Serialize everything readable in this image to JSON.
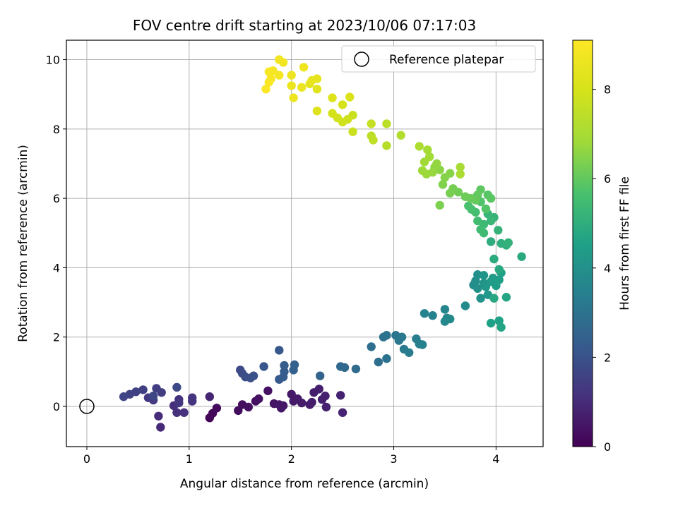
{
  "chart_data": {
    "type": "scatter",
    "title": "FOV centre drift starting at 2023/10/06 07:17:03",
    "xlabel": "Angular distance from reference (arcmin)",
    "ylabel": "Rotation from reference (arcmin)",
    "xlim": [
      -0.2,
      4.46
    ],
    "ylim": [
      -1.16,
      10.56
    ],
    "xticks": [
      0,
      1,
      2,
      3,
      4
    ],
    "yticks": [
      0,
      2,
      4,
      6,
      8,
      10
    ],
    "grid": true,
    "legend": {
      "placement": "top-right",
      "entries": [
        "Reference platepar"
      ]
    },
    "reference_point": {
      "name": "Reference platepar",
      "x": 0,
      "y": 0
    },
    "colorbar": {
      "label": "Hours from first FF file",
      "range": [
        0,
        9.1
      ],
      "ticks": [
        0,
        2,
        4,
        6,
        8
      ],
      "colormap": "viridis"
    },
    "points": [
      [
        1.2,
        -0.33,
        0.1
      ],
      [
        1.23,
        -0.2,
        0.15
      ],
      [
        1.27,
        -0.05,
        0.2
      ],
      [
        1.48,
        -0.12,
        0.25
      ],
      [
        1.52,
        0.05,
        0.3
      ],
      [
        1.58,
        -0.02,
        0.32
      ],
      [
        1.65,
        0.15,
        0.35
      ],
      [
        1.68,
        0.22,
        0.38
      ],
      [
        1.77,
        0.45,
        0.4
      ],
      [
        1.83,
        0.08,
        0.45
      ],
      [
        1.88,
        0.05,
        0.48
      ],
      [
        1.9,
        -0.05,
        0.5
      ],
      [
        1.92,
        0.02,
        0.52
      ],
      [
        2.0,
        0.35,
        0.55
      ],
      [
        2.02,
        0.15,
        0.58
      ],
      [
        2.06,
        0.22,
        0.6
      ],
      [
        2.1,
        0.1,
        0.6
      ],
      [
        2.18,
        0.05,
        0.65
      ],
      [
        2.2,
        0.12,
        0.66
      ],
      [
        2.22,
        0.4,
        0.68
      ],
      [
        2.27,
        0.5,
        0.7
      ],
      [
        2.3,
        0.2,
        0.72
      ],
      [
        2.33,
        0.3,
        0.74
      ],
      [
        2.34,
        -0.02,
        0.76
      ],
      [
        2.48,
        0.32,
        0.78
      ],
      [
        2.5,
        -0.18,
        0.8
      ],
      [
        1.2,
        0.28,
        0.85
      ],
      [
        0.72,
        -0.6,
        0.95
      ],
      [
        0.7,
        -0.28,
        1.0
      ],
      [
        0.85,
        0.02,
        1.05
      ],
      [
        0.9,
        0.2,
        1.1
      ],
      [
        0.88,
        -0.18,
        1.12
      ],
      [
        0.95,
        -0.18,
        1.15
      ],
      [
        1.03,
        0.15,
        1.2
      ],
      [
        1.03,
        0.25,
        1.22
      ],
      [
        0.9,
        0.1,
        1.25
      ],
      [
        0.6,
        0.25,
        1.3
      ],
      [
        0.65,
        0.18,
        1.35
      ],
      [
        0.73,
        0.4,
        1.4
      ],
      [
        0.68,
        0.52,
        1.45
      ],
      [
        0.55,
        0.48,
        1.5
      ],
      [
        0.48,
        0.42,
        1.55
      ],
      [
        0.42,
        0.35,
        1.6
      ],
      [
        0.36,
        0.28,
        1.65
      ],
      [
        0.65,
        0.3,
        1.7
      ],
      [
        0.88,
        0.55,
        1.75
      ],
      [
        1.5,
        1.05,
        1.8
      ],
      [
        1.52,
        0.95,
        1.85
      ],
      [
        1.55,
        0.85,
        1.9
      ],
      [
        1.6,
        0.82,
        1.95
      ],
      [
        1.63,
        0.88,
        2.0
      ],
      [
        1.73,
        1.15,
        2.1
      ],
      [
        1.88,
        1.62,
        2.15
      ],
      [
        1.88,
        0.78,
        2.2
      ],
      [
        1.92,
        0.85,
        2.25
      ],
      [
        1.93,
        1.0,
        2.3
      ],
      [
        1.93,
        1.18,
        2.35
      ],
      [
        2.02,
        1.05,
        2.4
      ],
      [
        2.03,
        1.2,
        2.45
      ],
      [
        2.28,
        0.88,
        2.55
      ],
      [
        2.48,
        1.15,
        2.65
      ],
      [
        2.52,
        1.12,
        2.7
      ],
      [
        2.63,
        1.08,
        2.75
      ],
      [
        2.78,
        1.72,
        2.85
      ],
      [
        2.85,
        1.28,
        2.9
      ],
      [
        2.9,
        2.0,
        2.95
      ],
      [
        2.93,
        1.38,
        3.0
      ],
      [
        2.93,
        2.05,
        3.05
      ],
      [
        3.02,
        2.05,
        3.1
      ],
      [
        3.05,
        1.9,
        3.15
      ],
      [
        3.08,
        2.0,
        3.2
      ],
      [
        3.1,
        1.65,
        3.25
      ],
      [
        3.15,
        1.55,
        3.3
      ],
      [
        3.22,
        1.95,
        3.35
      ],
      [
        3.25,
        1.8,
        3.4
      ],
      [
        3.28,
        1.78,
        3.45
      ],
      [
        3.3,
        2.68,
        3.5
      ],
      [
        3.38,
        2.62,
        3.55
      ],
      [
        3.5,
        2.8,
        3.6
      ],
      [
        3.52,
        2.55,
        3.65
      ],
      [
        3.5,
        2.45,
        3.7
      ],
      [
        3.55,
        2.52,
        3.75
      ],
      [
        3.7,
        2.9,
        3.8
      ],
      [
        3.78,
        3.5,
        3.85
      ],
      [
        3.8,
        3.62,
        3.9
      ],
      [
        3.82,
        3.8,
        3.95
      ],
      [
        3.82,
        3.4,
        4.0
      ],
      [
        3.85,
        3.12,
        4.05
      ],
      [
        3.88,
        3.55,
        4.1
      ],
      [
        3.88,
        3.78,
        4.15
      ],
      [
        3.9,
        3.45,
        4.2
      ],
      [
        3.92,
        3.22,
        4.25
      ],
      [
        3.95,
        3.6,
        4.3
      ],
      [
        3.97,
        3.7,
        4.35
      ],
      [
        4.0,
        3.48,
        4.4
      ],
      [
        4.03,
        3.65,
        4.45
      ],
      [
        4.05,
        3.85,
        4.5
      ],
      [
        3.95,
        2.4,
        4.55
      ],
      [
        4.03,
        2.47,
        4.6
      ],
      [
        4.05,
        2.28,
        4.65
      ],
      [
        4.1,
        3.15,
        4.7
      ],
      [
        3.98,
        3.12,
        4.75
      ],
      [
        4.03,
        3.95,
        4.8
      ],
      [
        4.25,
        4.32,
        4.85
      ],
      [
        3.98,
        4.25,
        4.9
      ],
      [
        3.95,
        4.75,
        4.95
      ],
      [
        4.05,
        4.7,
        5.0
      ],
      [
        4.1,
        4.65,
        5.05
      ],
      [
        4.12,
        4.72,
        5.1
      ],
      [
        4.02,
        5.08,
        5.15
      ],
      [
        3.98,
        5.45,
        5.2
      ],
      [
        3.92,
        5.55,
        5.25
      ],
      [
        3.95,
        5.35,
        5.3
      ],
      [
        3.88,
        5.25,
        5.35
      ],
      [
        3.88,
        5.0,
        5.4
      ],
      [
        3.85,
        5.1,
        5.45
      ],
      [
        3.82,
        5.35,
        5.5
      ],
      [
        3.8,
        5.6,
        5.55
      ],
      [
        3.76,
        5.68,
        5.6
      ],
      [
        3.73,
        5.78,
        5.65
      ],
      [
        3.8,
        6.02,
        5.7
      ],
      [
        3.85,
        5.9,
        5.75
      ],
      [
        3.9,
        5.7,
        5.8
      ],
      [
        3.92,
        6.1,
        5.85
      ],
      [
        3.95,
        6.0,
        5.9
      ],
      [
        3.85,
        6.25,
        5.95
      ],
      [
        3.82,
        6.1,
        6.0
      ],
      [
        3.8,
        5.95,
        6.05
      ],
      [
        3.75,
        6.0,
        6.1
      ],
      [
        3.7,
        6.05,
        6.15
      ],
      [
        3.63,
        6.18,
        6.2
      ],
      [
        3.58,
        6.28,
        6.25
      ],
      [
        3.55,
        6.15,
        6.3
      ],
      [
        3.45,
        5.8,
        6.35
      ],
      [
        3.48,
        6.4,
        6.4
      ],
      [
        3.5,
        6.6,
        6.45
      ],
      [
        3.55,
        6.72,
        6.5
      ],
      [
        3.45,
        6.82,
        6.55
      ],
      [
        3.4,
        6.9,
        6.6
      ],
      [
        3.42,
        7.0,
        6.65
      ],
      [
        3.38,
        6.75,
        6.7
      ],
      [
        3.32,
        6.7,
        6.75
      ],
      [
        3.28,
        6.8,
        6.8
      ],
      [
        3.3,
        7.05,
        6.85
      ],
      [
        3.35,
        7.2,
        6.9
      ],
      [
        3.33,
        7.4,
        6.95
      ],
      [
        3.65,
        6.9,
        7.0
      ],
      [
        3.65,
        6.7,
        7.05
      ],
      [
        3.25,
        7.5,
        7.1
      ],
      [
        3.07,
        7.82,
        7.2
      ],
      [
        2.93,
        7.52,
        7.3
      ],
      [
        2.93,
        8.15,
        7.4
      ],
      [
        2.78,
        7.8,
        7.45
      ],
      [
        2.8,
        7.68,
        7.5
      ],
      [
        2.78,
        8.15,
        7.6
      ],
      [
        2.6,
        8.4,
        7.7
      ],
      [
        2.6,
        7.92,
        7.75
      ],
      [
        2.55,
        8.28,
        7.8
      ],
      [
        2.5,
        8.2,
        7.85
      ],
      [
        2.45,
        8.32,
        7.9
      ],
      [
        2.4,
        8.45,
        7.95
      ],
      [
        2.5,
        8.7,
        8.0
      ],
      [
        2.57,
        8.92,
        8.1
      ],
      [
        2.4,
        8.9,
        8.2
      ],
      [
        2.25,
        8.52,
        8.25
      ],
      [
        2.25,
        9.15,
        8.3
      ],
      [
        2.18,
        9.3,
        8.4
      ],
      [
        2.25,
        9.45,
        8.45
      ],
      [
        2.2,
        9.4,
        8.5
      ],
      [
        2.1,
        9.2,
        8.55
      ],
      [
        2.0,
        9.25,
        8.6
      ],
      [
        2.02,
        8.9,
        8.62
      ],
      [
        2.0,
        9.55,
        8.65
      ],
      [
        2.12,
        9.78,
        8.7
      ],
      [
        1.88,
        10.0,
        8.75
      ],
      [
        1.92,
        9.92,
        8.8
      ],
      [
        1.88,
        9.55,
        8.85
      ],
      [
        1.82,
        9.68,
        8.88
      ],
      [
        1.78,
        9.65,
        8.9
      ],
      [
        1.8,
        9.45,
        8.95
      ],
      [
        1.78,
        9.35,
        9.0
      ],
      [
        1.75,
        9.15,
        9.05
      ]
    ]
  }
}
